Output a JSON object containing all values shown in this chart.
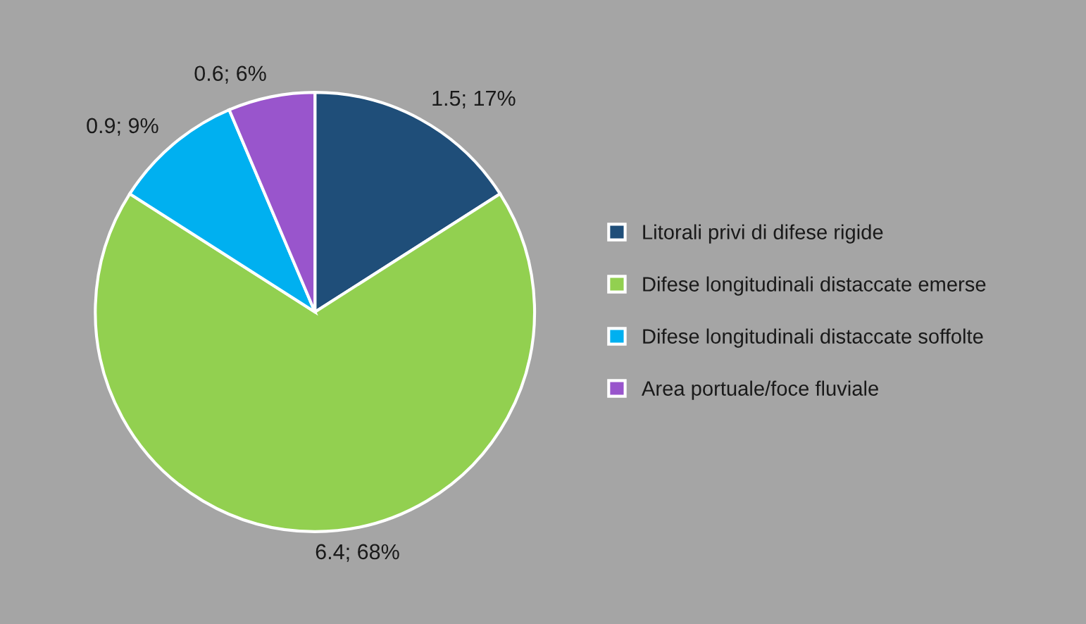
{
  "chart_data": {
    "type": "pie",
    "categories": [
      "Litorali privi di difese rigide",
      "Difese longitudinali distaccate emerse",
      "Difese longitudinali distaccate soffolte",
      "Area portuale/foce fluviale"
    ],
    "values": [
      1.5,
      6.4,
      0.9,
      0.6
    ],
    "value_labels": [
      "1.5; 17%",
      "6.4; 68%",
      "0.9; 9%",
      "0.6; 6%"
    ],
    "colors": [
      "#1f4e79",
      "#92d050",
      "#00b0f0",
      "#9955cc"
    ],
    "legend": "right"
  }
}
